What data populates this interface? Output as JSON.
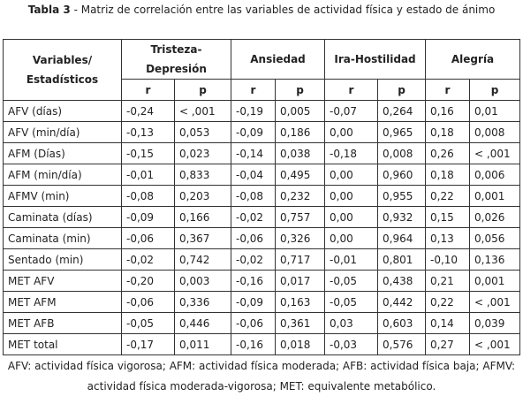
{
  "caption": {
    "label": "Tabla 3",
    "text": " - Matriz de correlación entre las variables de actividad física y estado de ánimo"
  },
  "table": {
    "header": {
      "first": "Variables/ Estadísticos",
      "groups": [
        "Tristeza-Depresión",
        "Ansiedad",
        "Ira-Hostilidad",
        "Alegría"
      ],
      "sub": [
        "r",
        "p",
        "r",
        "p",
        "r",
        "p",
        "r",
        "p"
      ]
    },
    "rows": [
      [
        "AFV (días)",
        "-0,24",
        "< ,001",
        "-0,19",
        "0,005",
        "-0,07",
        "0,264",
        "0,16",
        "0,01"
      ],
      [
        "AFV (min/día)",
        "-0,13",
        "0,053",
        "-0,09",
        "0,186",
        "0,00",
        "0,965",
        "0,18",
        "0,008"
      ],
      [
        "AFM (Días)",
        "-0,15",
        "0,023",
        "-0,14",
        "0,038",
        "-0,18",
        "0,008",
        "0,26",
        "< ,001"
      ],
      [
        "AFM (min/día)",
        "-0,01",
        "0,833",
        "-0,04",
        "0,495",
        "0,00",
        "0,960",
        "0,18",
        "0,006"
      ],
      [
        "AFMV (min)",
        "-0,08",
        "0,203",
        "-0,08",
        "0,232",
        "0,00",
        "0,955",
        "0,22",
        "0,001"
      ],
      [
        "Caminata (días)",
        "-0,09",
        "0,166",
        "-0,02",
        "0,757",
        "0,00",
        "0,932",
        "0,15",
        "0,026"
      ],
      [
        "Caminata (min)",
        "-0,06",
        "0,367",
        "-0,06",
        "0,326",
        "0,00",
        "0,964",
        "0,13",
        "0,056"
      ],
      [
        "Sentado (min)",
        "-0,02",
        "0,742",
        "-0,02",
        "0,717",
        "-0,01",
        "0,801",
        "-0,10",
        "0,136"
      ],
      [
        "MET AFV",
        "-0,20",
        "0,003",
        "-0,16",
        "0,017",
        "-0,05",
        "0,438",
        "0,21",
        "0,001"
      ],
      [
        "MET AFM",
        "-0,06",
        "0,336",
        "-0,09",
        "0,163",
        "-0,05",
        "0,442",
        "0,22",
        "< ,001"
      ],
      [
        "MET AFB",
        "-0,05",
        "0,446",
        "-0,06",
        "0,361",
        "0,03",
        "0,603",
        "0,14",
        "0,039"
      ],
      [
        "MET total",
        "-0,17",
        "0,011",
        "-0,16",
        "0,018",
        "-0,03",
        "0,576",
        "0,27",
        "< ,001"
      ]
    ]
  },
  "footnote": "AFV: actividad física vigorosa; AFM: actividad física moderada; AFB: actividad física baja; AFMV: actividad física moderada-vigorosa; MET: equivalente metabólico."
}
